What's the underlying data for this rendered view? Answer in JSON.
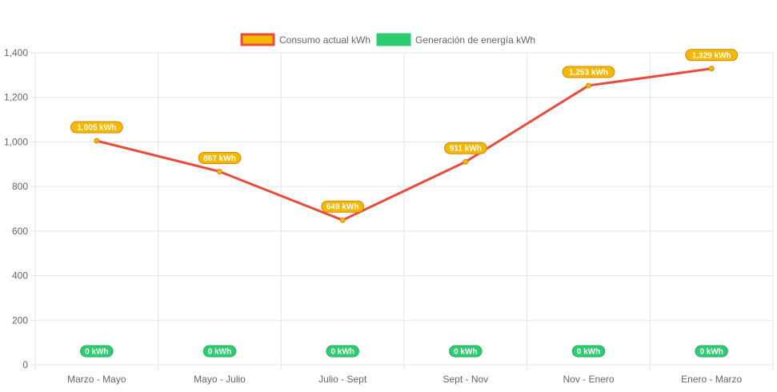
{
  "chart_data": {
    "type": "line",
    "categories": [
      "Marzo - Mayo",
      "Mayo - Julio",
      "Julio - Sept",
      "Sept - Nov",
      "Nov - Enero",
      "Enero - Marzo"
    ],
    "series": [
      {
        "name": "Consumo actual kWh",
        "values": [
          1005,
          867,
          649,
          911,
          1253,
          1329
        ],
        "labels": [
          "1,005 kWh",
          "867 kWh",
          "649 kWh",
          "911 kWh",
          "1,253 kWh",
          "1,329 kWh"
        ],
        "color": "#e74c3c",
        "fill": "#f5b800",
        "label_border": "#d68910"
      },
      {
        "name": "Generación de energía kWh",
        "values": [
          0,
          0,
          0,
          0,
          0,
          0
        ],
        "labels": [
          "0 kWh",
          "0 kWh",
          "0 kWh",
          "0 kWh",
          "0 kWh",
          "0 kWh"
        ],
        "color": "#2ecc71",
        "fill": "#2ecc71",
        "label_border": "#27ae60"
      }
    ],
    "ylim": [
      0,
      1400
    ],
    "yticks": [
      "0",
      "200",
      "400",
      "600",
      "800",
      "1,000",
      "1,200",
      "1,400"
    ],
    "ytick_values": [
      0,
      200,
      400,
      600,
      800,
      1000,
      1200,
      1400
    ],
    "grid": true,
    "legend_position": "top-center"
  }
}
